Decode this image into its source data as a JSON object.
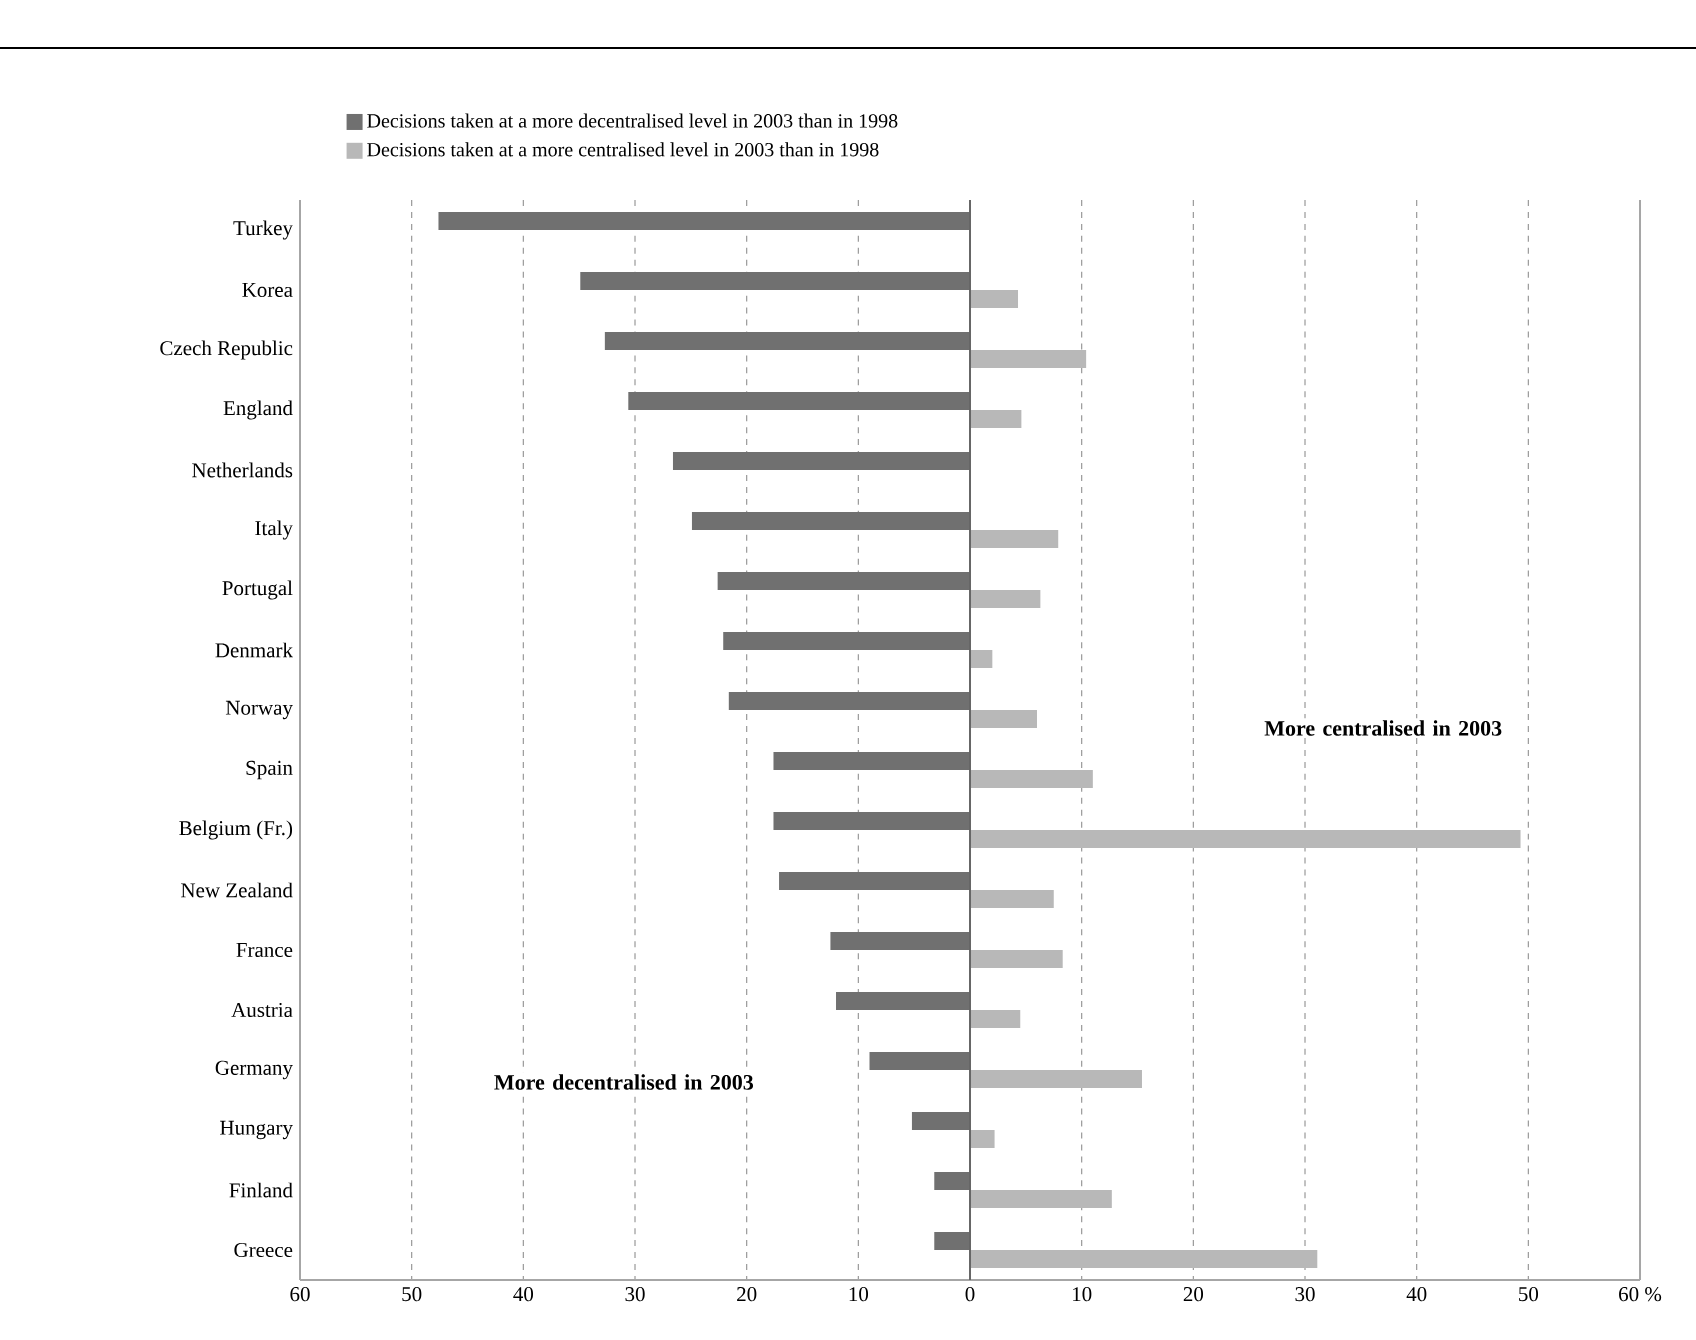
{
  "chart_data": {
    "type": "bar",
    "orientation": "horizontal",
    "categories": [
      "Turkey",
      "Korea",
      "Czech Republic",
      "England",
      "Netherlands",
      "Italy",
      "Portugal",
      "Denmark",
      "Norway",
      "Spain",
      "Belgium (Fr.)",
      "New Zealand",
      "France",
      "Austria",
      "Germany",
      "Hungary",
      "Finland",
      "Greece"
    ],
    "series": [
      {
        "name": "Decisions taken at a more decentralised level in 2003 than in 1998",
        "color": "#707070",
        "values": [
          -47.6,
          -34.9,
          -32.7,
          -30.6,
          -26.6,
          -24.9,
          -22.6,
          -22.1,
          -21.6,
          -17.6,
          -17.6,
          -17.1,
          -12.5,
          -12.0,
          -9.0,
          -5.2,
          -3.2,
          -3.2
        ]
      },
      {
        "name": "Decisions taken at a more centralised level in 2003 than in 1998",
        "color": "#b8b8b8",
        "values": [
          null,
          4.3,
          10.4,
          4.6,
          null,
          7.9,
          6.3,
          2.0,
          6.0,
          11.0,
          49.3,
          7.5,
          8.3,
          4.5,
          15.4,
          2.2,
          12.7,
          31.1
        ]
      }
    ],
    "xlim": [
      -60,
      60
    ],
    "xticks": [
      {
        "value": -60,
        "label": "60"
      },
      {
        "value": -50,
        "label": "50"
      },
      {
        "value": -40,
        "label": "40"
      },
      {
        "value": -30,
        "label": "30"
      },
      {
        "value": -20,
        "label": "20"
      },
      {
        "value": -10,
        "label": "10"
      },
      0,
      10,
      20,
      30,
      40,
      50,
      {
        "value": 60,
        "label": "60 %"
      }
    ],
    "grid": "x",
    "legend": "top",
    "ref_lines": [
      {
        "axis": "x",
        "value": 0
      }
    ],
    "annotations": [
      "More decentralised in 2003",
      "More centralised in 2003"
    ]
  }
}
